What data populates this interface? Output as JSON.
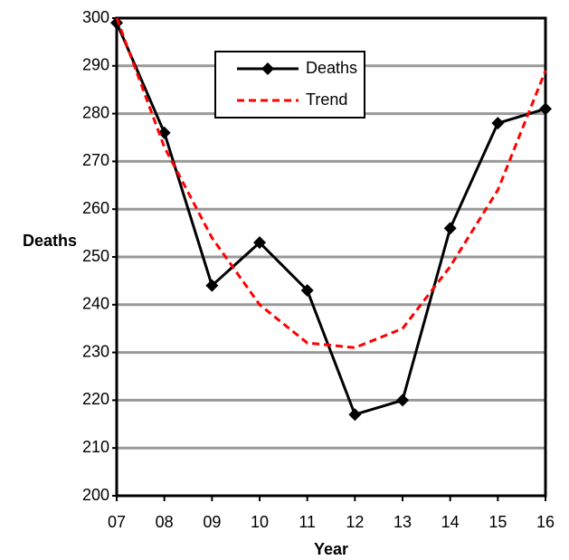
{
  "chart_data": {
    "type": "line",
    "x_label": "Year",
    "y_label": "Deaths",
    "categories": [
      "07",
      "08",
      "09",
      "10",
      "11",
      "12",
      "13",
      "14",
      "15",
      "16"
    ],
    "series": [
      {
        "name": "Deaths",
        "color": "#000000",
        "values": [
          299,
          276,
          244,
          253,
          243,
          217,
          220,
          256,
          278,
          281
        ]
      },
      {
        "name": "Trend",
        "color": "#ff0000",
        "values": [
          300,
          273,
          254,
          240,
          232,
          231,
          235,
          248,
          264,
          289
        ]
      }
    ],
    "ylim": [
      200,
      300
    ],
    "yticks": [
      200,
      210,
      220,
      230,
      240,
      250,
      260,
      270,
      280,
      290,
      300
    ],
    "grid": true
  }
}
